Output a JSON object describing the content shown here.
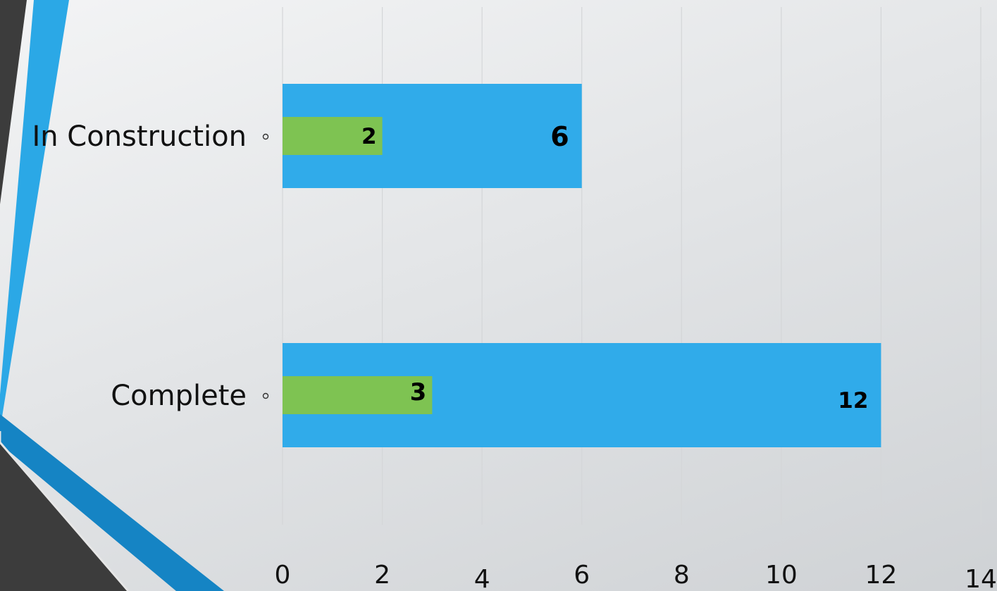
{
  "colors": {
    "series_total": "#30abea",
    "series_part": "#7ec352",
    "grid": "#d4d6d8",
    "decor_dark": "#3c3c3c",
    "decor_blue": "#2ba8e6",
    "decor_deep_blue": "#1584c4"
  },
  "chart_data": {
    "type": "bar",
    "orientation": "horizontal",
    "categories": [
      "In Construction",
      "Complete"
    ],
    "series": [
      {
        "values": [
          6,
          12
        ]
      },
      {
        "values": [
          2,
          3
        ]
      }
    ],
    "xlim": [
      0,
      14
    ],
    "xticks": [
      "0",
      "2",
      "4",
      "6",
      "8",
      "10",
      "12",
      "14"
    ],
    "grid": true,
    "legend": "none"
  }
}
